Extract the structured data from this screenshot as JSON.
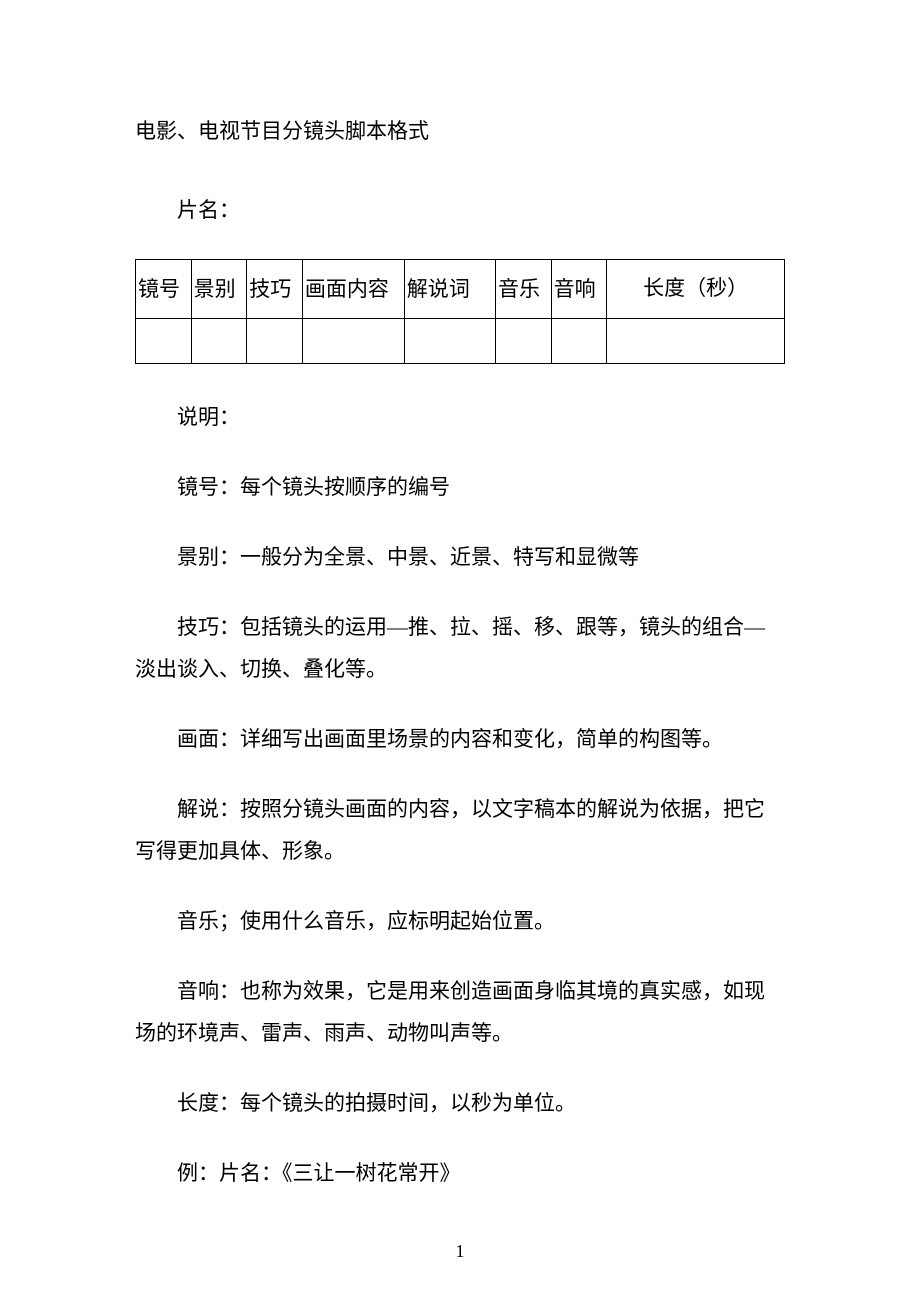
{
  "title": "电影、电视节目分镜头脚本格式",
  "filmLabel": "片名：",
  "table": {
    "headers": [
      "镜号",
      "景别",
      "技巧",
      "画面内容",
      "解说词",
      "音乐",
      "音响",
      "长度（秒）"
    ]
  },
  "paragraphs": {
    "intro": "说明：",
    "p1": "镜号：每个镜头按顺序的编号",
    "p2": "景别：一般分为全景、中景、近景、特写和显微等",
    "p3": "技巧：包括镜头的运用—推、拉、摇、移、跟等，镜头的组合—淡出谈入、切换、叠化等。",
    "p4": "画面：详细写出画面里场景的内容和变化，简单的构图等。",
    "p5": "解说：按照分镜头画面的内容，以文字稿本的解说为依据，把它写得更加具体、形象。",
    "p6": "音乐；使用什么音乐，应标明起始位置。",
    "p7": "音响：也称为效果，它是用来创造画面身临其境的真实感，如现场的环境声、雷声、雨声、动物叫声等。",
    "p8": "长度：每个镜头的拍摄时间，以秒为单位。",
    "p9": "例：片名：《三让一树花常开》"
  },
  "pageNumber": "1"
}
